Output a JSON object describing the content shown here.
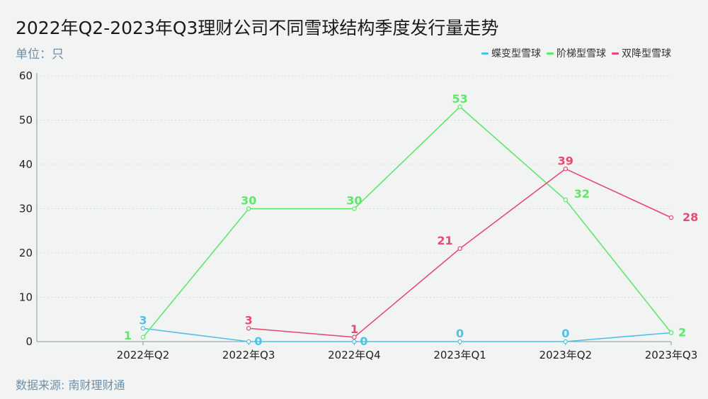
{
  "title": "2022年Q2-2023年Q3理财公司不同雪球结构季度发行量走势",
  "unit": "单位：只",
  "source": "数据来源: 南财理财通",
  "chart_data": {
    "type": "line",
    "categories": [
      "2022年Q2",
      "2022年Q3",
      "2022年Q4",
      "2023年Q1",
      "2023年Q2",
      "2023年Q3"
    ],
    "ylim": [
      0,
      60
    ],
    "yticks": [
      "0",
      "10",
      "20",
      "30",
      "40",
      "50",
      "60"
    ],
    "grid": true,
    "legend_position": "top-right",
    "series": [
      {
        "name": "蝶变型雪球",
        "color": "#4cc3e6",
        "values": [
          3,
          0,
          0,
          0,
          0,
          2
        ],
        "labels": [
          "3",
          "0",
          "0",
          "0",
          "0",
          ""
        ]
      },
      {
        "name": "阶梯型雪球",
        "color": "#5ee86a",
        "values": [
          1,
          30,
          30,
          53,
          32,
          2
        ],
        "labels": [
          "1",
          "30",
          "30",
          "53",
          "32",
          "2"
        ]
      },
      {
        "name": "双降型雪球",
        "color": "#e84a72",
        "values": [
          null,
          3,
          1,
          21,
          39,
          28
        ],
        "labels": [
          "",
          "3",
          "1",
          "21",
          "39",
          "28"
        ]
      }
    ]
  }
}
